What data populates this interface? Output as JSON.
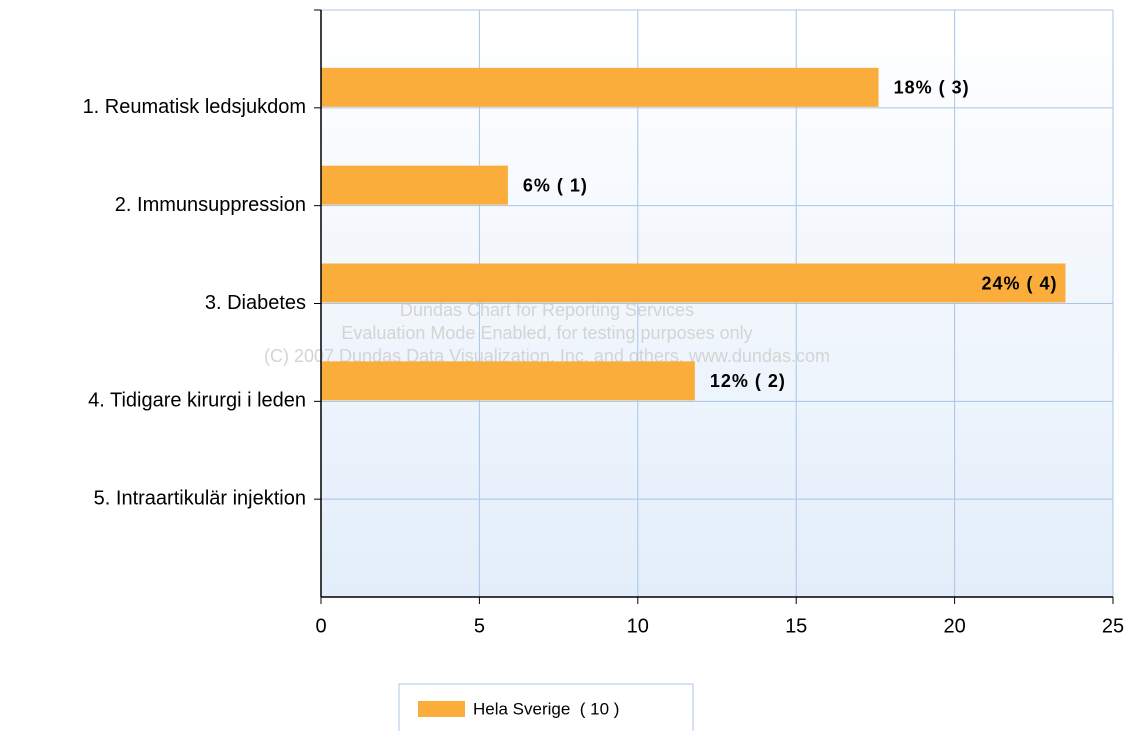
{
  "chart_data": {
    "type": "bar",
    "orientation": "horizontal",
    "categories": [
      "1. Reumatisk ledsjukdom",
      "2. Immunsuppression",
      "3. Diabetes",
      "4. Tidigare kirurgi i leden",
      "5. Intraartikulär injektion"
    ],
    "series": [
      {
        "name": "Hela Sverige  ( 10 )",
        "color": "#fbad3c",
        "values": [
          17.6,
          5.9,
          23.5,
          11.8,
          null
        ],
        "value_labels": [
          "18% ( 3)",
          "6% ( 1)",
          "24% ( 4)",
          "12% ( 2)",
          null
        ]
      }
    ],
    "xlim": [
      0,
      25
    ],
    "xticks": [
      0,
      5,
      10,
      15,
      20,
      25
    ],
    "grid": true,
    "legend": "bottom",
    "watermark": [
      "Dundas Chart for Reporting Services",
      "Evaluation Mode Enabled, for testing purposes only",
      "(C) 2007 Dundas Data Visualization, Inc. and others, www.dundas.com"
    ]
  }
}
